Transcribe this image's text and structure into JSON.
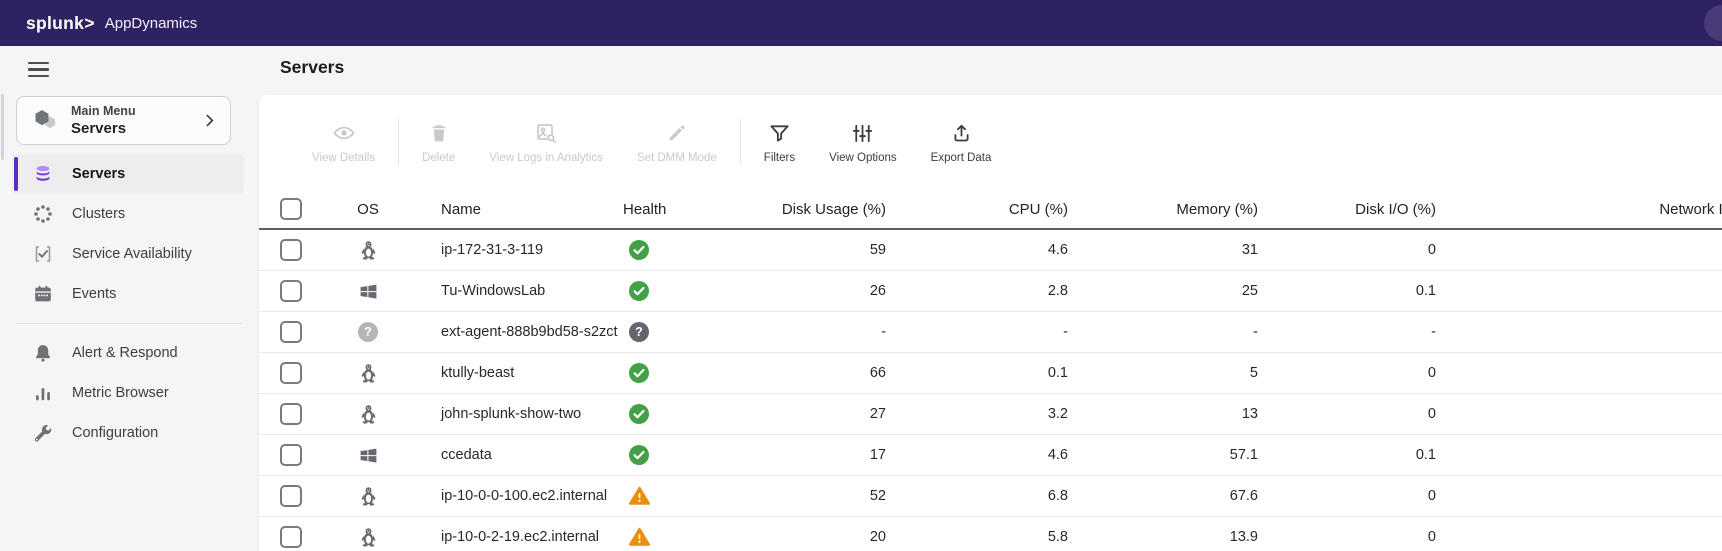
{
  "topbar": {
    "logo": "splunk>",
    "product": "AppDynamics"
  },
  "page": {
    "title": "Servers"
  },
  "sidebar": {
    "main_menu": {
      "label": "Main Menu",
      "value": "Servers"
    },
    "items": [
      {
        "label": "Servers",
        "icon": "database-stack-icon",
        "active": true
      },
      {
        "label": "Clusters",
        "icon": "cluster-dots-icon"
      },
      {
        "label": "Service Availability",
        "icon": "service-check-icon"
      },
      {
        "label": "Events",
        "icon": "calendar-icon"
      },
      {
        "label": "Alert & Respond",
        "icon": "bell-icon",
        "divider_before": true
      },
      {
        "label": "Metric Browser",
        "icon": "bar-chart-icon"
      },
      {
        "label": "Configuration",
        "icon": "wrench-icon"
      }
    ]
  },
  "toolbar": {
    "groups": [
      {
        "items": [
          {
            "label": "View Details",
            "icon": "eye-icon",
            "disabled": true
          }
        ]
      },
      {
        "items": [
          {
            "label": "Delete",
            "icon": "trash-icon",
            "disabled": true
          },
          {
            "label": "View Logs in Analytics",
            "icon": "image-search-icon",
            "disabled": true
          },
          {
            "label": "Set DMM Mode",
            "icon": "pencil-icon",
            "disabled": true
          }
        ]
      },
      {
        "items": [
          {
            "label": "Filters",
            "icon": "filter-funnel-icon",
            "disabled": false
          },
          {
            "label": "View Options",
            "icon": "sliders-icon",
            "disabled": false
          },
          {
            "label": "Export Data",
            "icon": "export-icon",
            "disabled": false
          }
        ]
      }
    ]
  },
  "table": {
    "columns": [
      {
        "key": "os",
        "label": "OS"
      },
      {
        "key": "name",
        "label": "Name"
      },
      {
        "key": "health",
        "label": "Health"
      },
      {
        "key": "disk_usage",
        "label": "Disk Usage (%)"
      },
      {
        "key": "cpu",
        "label": "CPU (%)"
      },
      {
        "key": "memory",
        "label": "Memory (%)"
      },
      {
        "key": "disk_io",
        "label": "Disk I/O (%)"
      },
      {
        "key": "network_io",
        "label": "Network I/O (%)"
      }
    ],
    "rows": [
      {
        "os": "linux",
        "name": "ip-172-31-3-119",
        "health": "healthy",
        "disk_usage": "59",
        "cpu": "4.6",
        "memory": "31",
        "disk_io": "0",
        "network_io": ""
      },
      {
        "os": "windows",
        "name": "Tu-WindowsLab",
        "health": "healthy",
        "disk_usage": "26",
        "cpu": "2.8",
        "memory": "25",
        "disk_io": "0.1",
        "network_io": ""
      },
      {
        "os": "unknown",
        "name": "ext-agent-888b9bd58-s2zct",
        "health": "unknown",
        "disk_usage": "-",
        "cpu": "-",
        "memory": "-",
        "disk_io": "-",
        "network_io": ""
      },
      {
        "os": "linux",
        "name": "ktully-beast",
        "health": "healthy",
        "disk_usage": "66",
        "cpu": "0.1",
        "memory": "5",
        "disk_io": "0",
        "network_io": ""
      },
      {
        "os": "linux",
        "name": "john-splunk-show-two",
        "health": "healthy",
        "disk_usage": "27",
        "cpu": "3.2",
        "memory": "13",
        "disk_io": "0",
        "network_io": ""
      },
      {
        "os": "windows",
        "name": "ccedata",
        "health": "healthy",
        "disk_usage": "17",
        "cpu": "4.6",
        "memory": "57.1",
        "disk_io": "0.1",
        "network_io": ""
      },
      {
        "os": "linux",
        "name": "ip-10-0-0-100.ec2.internal",
        "health": "warning",
        "disk_usage": "52",
        "cpu": "6.8",
        "memory": "67.6",
        "disk_io": "0",
        "network_io": ""
      },
      {
        "os": "linux",
        "name": "ip-10-0-2-19.ec2.internal",
        "health": "warning",
        "disk_usage": "20",
        "cpu": "5.8",
        "memory": "13.9",
        "disk_io": "0",
        "network_io": ""
      }
    ]
  },
  "glyphs": {
    "question": "?"
  },
  "colors": {
    "topbar_bg": "#2F2262",
    "accent_purple": "#5C2EBE",
    "healthy_green": "#43A047",
    "warning_orange": "#E8900C",
    "health_unknown_gray": "#63666d",
    "os_unknown_gray": "#b4b6ba",
    "icon_gray": "#676b71"
  }
}
